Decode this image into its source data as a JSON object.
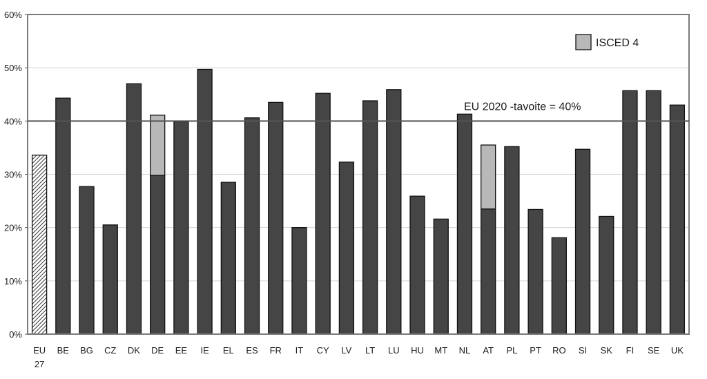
{
  "chart_data": {
    "type": "bar",
    "stacked": true,
    "categories": [
      "EU 27",
      "BE",
      "BG",
      "CZ",
      "DK",
      "DE",
      "EE",
      "IE",
      "EL",
      "ES",
      "FR",
      "IT",
      "CY",
      "LV",
      "LT",
      "LU",
      "HU",
      "MT",
      "NL",
      "AT",
      "PL",
      "PT",
      "RO",
      "SI",
      "SK",
      "FI",
      "SE",
      "UK"
    ],
    "series": [
      {
        "values": [
          33.6,
          44.3,
          27.7,
          20.5,
          47.0,
          29.8,
          39.9,
          49.7,
          28.5,
          40.6,
          43.5,
          20.0,
          45.2,
          32.3,
          43.8,
          45.9,
          25.9,
          21.6,
          41.3,
          23.5,
          35.2,
          23.4,
          18.1,
          34.7,
          22.1,
          45.7,
          45.7,
          43.0
        ],
        "color": "#454545",
        "highlight": {
          "category": "EU 27",
          "pattern": "hatched"
        }
      },
      {
        "name": "ISCED 4",
        "values": [
          0,
          0,
          0,
          0,
          0,
          11.3,
          0,
          0,
          0,
          0,
          0,
          0,
          0,
          0,
          0,
          0,
          0,
          0,
          0,
          12.0,
          0,
          0,
          0,
          0,
          0,
          0,
          0,
          0
        ],
        "color": "#b8b8b8"
      }
    ],
    "yaxis": {
      "min": 0,
      "max": 60,
      "step": 10,
      "format": "{v}%"
    },
    "grid": true,
    "legend": {
      "position": "top-right",
      "entries": [
        "ISCED 4"
      ]
    },
    "reference_line": {
      "value": 40,
      "label": "EU 2020 -tavoite = 40%"
    }
  }
}
